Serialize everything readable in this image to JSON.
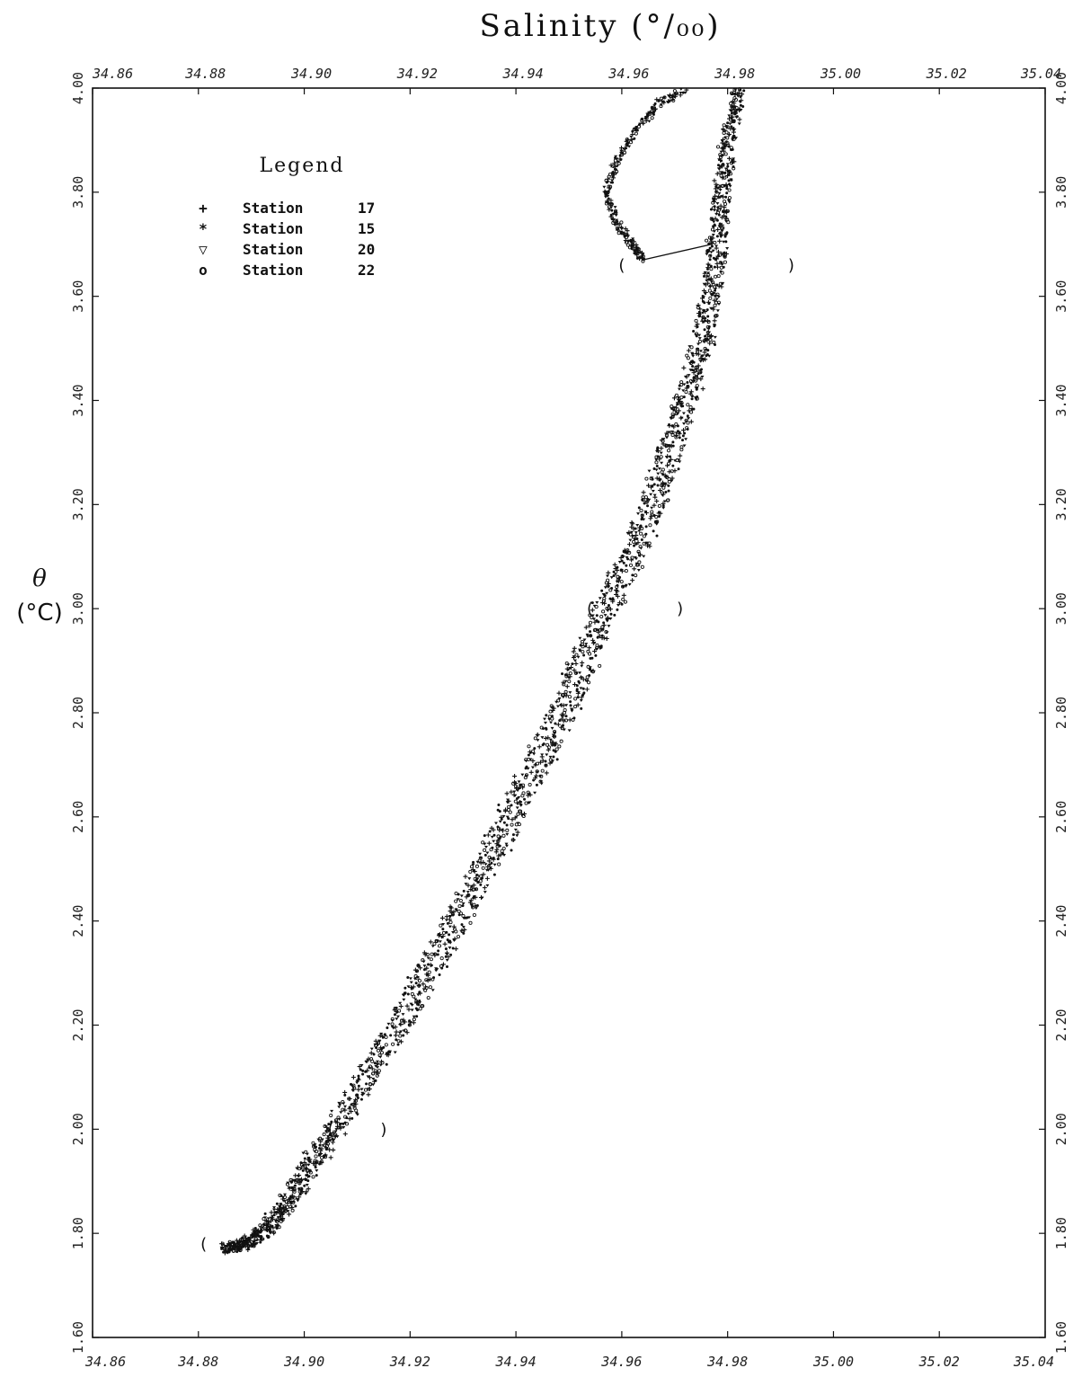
{
  "chart_data": {
    "type": "scatter",
    "title": "Salinity (°/₀₀)",
    "xlabel": "Salinity (°/₀₀)",
    "ylabel_symbol": "θ",
    "ylabel_unit": "(°C)",
    "xlim": [
      34.86,
      35.04
    ],
    "ylim": [
      1.6,
      4.0
    ],
    "x_ticks": [
      "34.86",
      "34.88",
      "34.90",
      "34.92",
      "34.94",
      "34.96",
      "34.98",
      "35.00",
      "35.02",
      "35.04"
    ],
    "y_ticks": [
      "1.60",
      "1.80",
      "2.00",
      "2.20",
      "2.40",
      "2.60",
      "2.80",
      "3.00",
      "3.20",
      "3.40",
      "3.60",
      "3.80",
      "4.00"
    ],
    "legend": {
      "title": "Legend",
      "placement": "top-left",
      "entries": [
        {
          "symbol": "+",
          "label": "Station",
          "station": "17"
        },
        {
          "symbol": "*",
          "label": "Station",
          "station": "15"
        },
        {
          "symbol": "▽",
          "label": "Station",
          "station": "20"
        },
        {
          "symbol": "o",
          "label": "Station",
          "station": "22"
        }
      ]
    },
    "parenthesis_marks": [
      {
        "x": 34.881,
        "y": 1.78,
        "text": "("
      },
      {
        "x": 34.905,
        "y": 2.0,
        "text": "("
      },
      {
        "x": 34.915,
        "y": 2.0,
        "text": ")"
      },
      {
        "x": 34.954,
        "y": 3.0,
        "text": "("
      },
      {
        "x": 34.971,
        "y": 3.0,
        "text": ")"
      },
      {
        "x": 34.96,
        "y": 3.66,
        "text": "("
      },
      {
        "x": 34.992,
        "y": 3.66,
        "text": ")"
      }
    ],
    "series_path": [
      [
        34.885,
        1.77
      ],
      [
        34.889,
        1.78
      ],
      [
        34.893,
        1.81
      ],
      [
        34.897,
        1.86
      ],
      [
        34.901,
        1.93
      ],
      [
        34.906,
        2.0
      ],
      [
        34.912,
        2.1
      ],
      [
        34.918,
        2.2
      ],
      [
        34.923,
        2.3
      ],
      [
        34.929,
        2.4
      ],
      [
        34.934,
        2.5
      ],
      [
        34.939,
        2.6
      ],
      [
        34.944,
        2.7
      ],
      [
        34.949,
        2.8
      ],
      [
        34.953,
        2.9
      ],
      [
        34.957,
        3.0
      ],
      [
        34.962,
        3.1
      ],
      [
        34.966,
        3.2
      ],
      [
        34.969,
        3.3
      ],
      [
        34.972,
        3.4
      ],
      [
        34.975,
        3.5
      ],
      [
        34.977,
        3.6
      ],
      [
        34.978,
        3.7
      ],
      [
        34.979,
        3.8
      ],
      [
        34.98,
        3.9
      ],
      [
        34.982,
        4.0
      ]
    ],
    "intrusion_path": [
      [
        34.964,
        3.67
      ],
      [
        34.962,
        3.7
      ],
      [
        34.959,
        3.74
      ],
      [
        34.957,
        3.8
      ],
      [
        34.959,
        3.86
      ],
      [
        34.963,
        3.92
      ],
      [
        34.967,
        3.97
      ],
      [
        34.972,
        4.0
      ]
    ],
    "connector_line": [
      [
        34.964,
        3.67
      ],
      [
        34.977,
        3.7
      ]
    ],
    "grid": false
  }
}
